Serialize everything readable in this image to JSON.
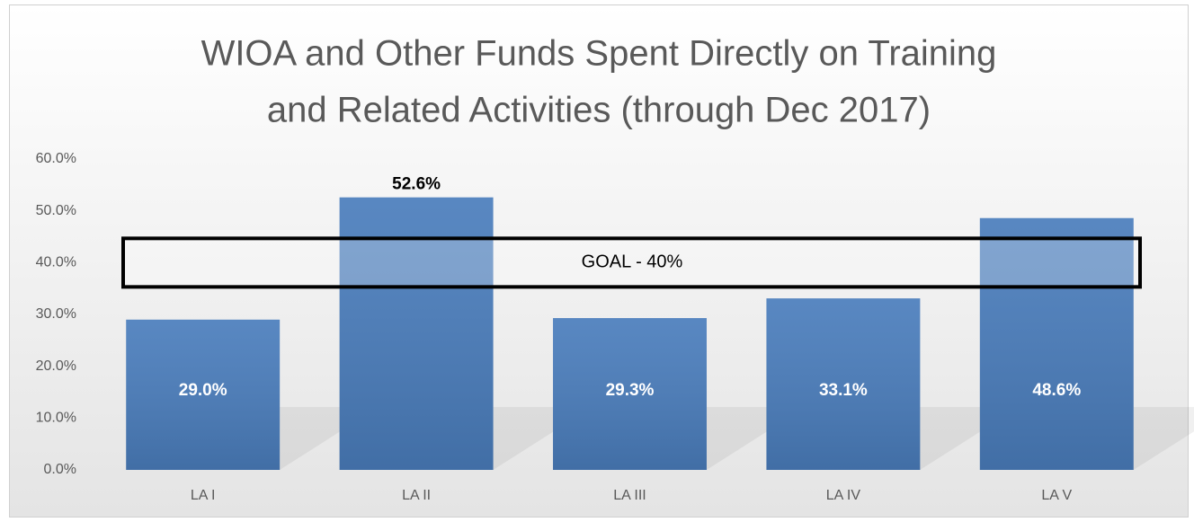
{
  "chart_data": {
    "type": "bar",
    "title": [
      "WIOA and Other Funds Spent Directly on Training",
      "and Related Activities (through Dec 2017)"
    ],
    "categories": [
      "LA I",
      "LA II",
      "LA III",
      "LA IV",
      "LA V"
    ],
    "values": [
      29.0,
      52.6,
      29.3,
      33.1,
      48.6
    ],
    "value_labels": [
      "29.0%",
      "52.6%",
      "29.3%",
      "33.1%",
      "48.6%"
    ],
    "label_positions": [
      "inside",
      "outside",
      "inside",
      "inside",
      "inside"
    ],
    "color": "#4a7dbc",
    "ylim": [
      0,
      60
    ],
    "yticks": [
      {
        "value": 0,
        "label": "0.0%"
      },
      {
        "value": 10,
        "label": "10.0%"
      },
      {
        "value": 20,
        "label": "20.0%"
      },
      {
        "value": 30,
        "label": "30.0%"
      },
      {
        "value": 40,
        "label": "40.0%"
      },
      {
        "value": 50,
        "label": "50.0%"
      },
      {
        "value": 60,
        "label": "60.0%"
      }
    ],
    "grid": false,
    "goal": {
      "value": 40,
      "label": "GOAL - 40%"
    }
  }
}
